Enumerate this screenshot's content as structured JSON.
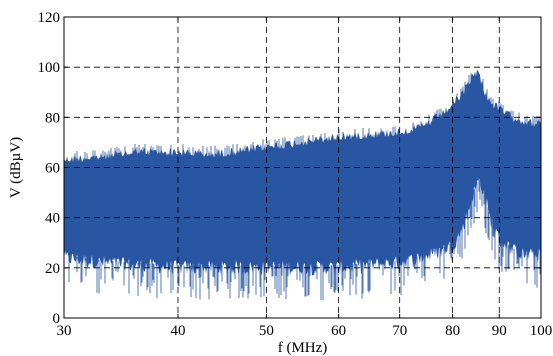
{
  "chart_data": {
    "type": "area",
    "title": "",
    "xlabel": "f (MHz)",
    "ylabel": "V (dBµV)",
    "x_scale": "log",
    "xlim": [
      30,
      100
    ],
    "ylim": [
      0,
      120
    ],
    "grid": true,
    "grid_style": "dashed",
    "xticks": [
      30,
      40,
      50,
      60,
      70,
      80,
      90,
      100
    ],
    "xtick_labels": [
      "30",
      "40",
      "50",
      "60",
      "70",
      "80",
      "90",
      "100"
    ],
    "yticks": [
      0,
      20,
      40,
      60,
      80,
      100,
      120
    ],
    "ytick_labels": [
      "0",
      "20",
      "40",
      "60",
      "80",
      "100",
      "120"
    ],
    "fill_color": "#2856a3",
    "series": [
      {
        "upper_envelope": {
          "x": [
            30,
            33,
            36,
            40,
            43,
            46,
            50,
            55,
            60,
            65,
            70,
            74,
            78,
            80,
            82,
            83,
            84,
            85,
            85.5,
            86,
            87,
            88,
            90,
            93,
            96,
            100
          ],
          "y": [
            65,
            66,
            68,
            68,
            67,
            68,
            70,
            72,
            74,
            75,
            76,
            78,
            83,
            87,
            91,
            95,
            98,
            100,
            99,
            96,
            91,
            88,
            85,
            82,
            80,
            79
          ]
        },
        "lower_envelope": {
          "x": [
            30,
            33,
            36,
            40,
            45,
            50,
            55,
            60,
            65,
            70,
            74,
            77,
            80,
            82,
            83,
            84,
            85,
            85.5,
            86,
            87,
            88,
            90,
            93,
            96,
            100
          ],
          "y": [
            21,
            19,
            18,
            17,
            17,
            17,
            17,
            17,
            18,
            19,
            21,
            23,
            26,
            32,
            38,
            45,
            50,
            52,
            50,
            44,
            36,
            28,
            24,
            22,
            22
          ]
        }
      }
    ]
  }
}
